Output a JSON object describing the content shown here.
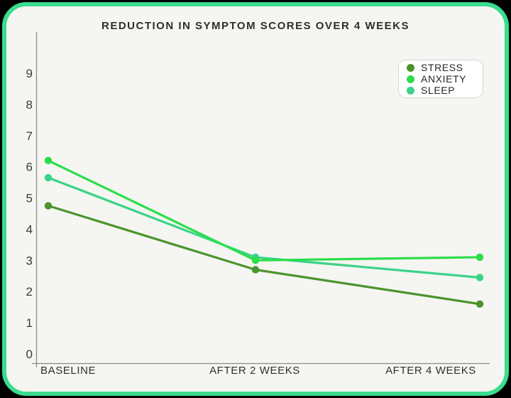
{
  "card": {
    "page_background": "#000000",
    "background": "#f5f5f2",
    "border_color": "#3adc8d"
  },
  "axes": {
    "line_color": "#8a8a8a",
    "tick_label_color": "#3a3a3a"
  },
  "chart_data": {
    "type": "line",
    "title": "REDUCTION IN SYMPTOM SCORES OVER 4 WEEKS",
    "categories": [
      "BASELINE",
      "AFTER 2 WEEKS",
      "AFTER 4 WEEKS"
    ],
    "series": [
      {
        "name": "STRESS",
        "color": "#4a942c",
        "values": [
          4.75,
          2.7,
          1.6
        ]
      },
      {
        "name": "ANXIETY",
        "color": "#2cdd4a",
        "values": [
          6.2,
          3.0,
          3.1
        ]
      },
      {
        "name": "SLEEP",
        "color": "#3bd387",
        "values": [
          5.65,
          3.1,
          2.45
        ]
      }
    ],
    "xlabel": "",
    "ylabel": "",
    "ylim": [
      0,
      9
    ],
    "yticks": [
      0,
      1,
      2,
      3,
      4,
      5,
      6,
      7,
      8,
      9
    ],
    "grid": false,
    "legend": {
      "entries": [
        "STRESS",
        "ANXIETY",
        "SLEEP"
      ],
      "position": "top-right"
    }
  }
}
